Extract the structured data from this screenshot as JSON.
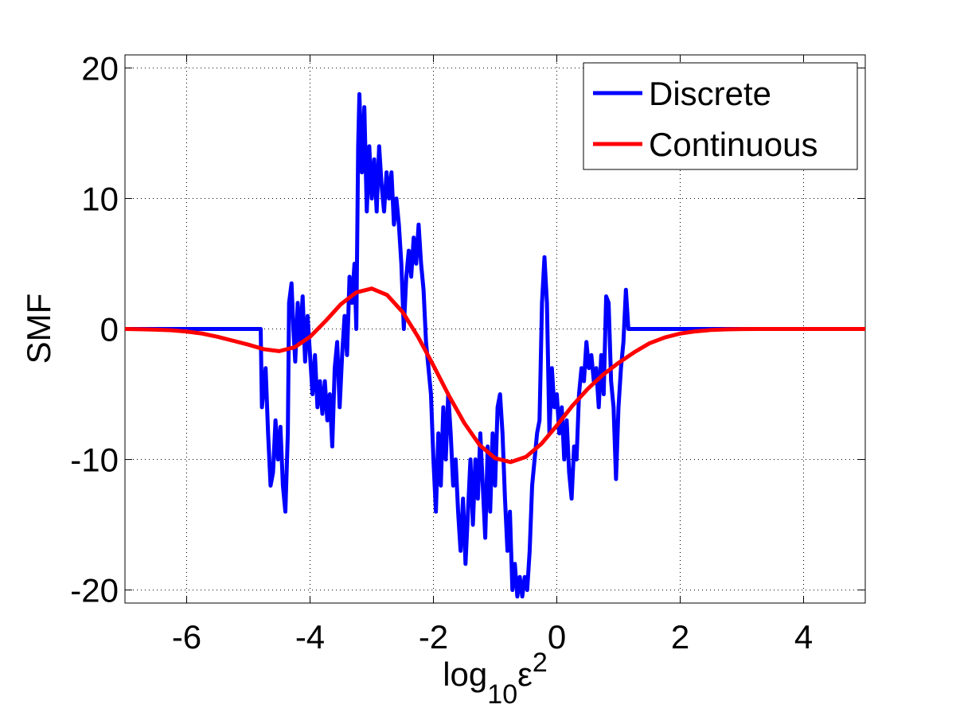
{
  "chart_data": {
    "type": "line",
    "xlabel": {
      "base": "log",
      "sub": "10",
      "main": "ε",
      "sup": "2"
    },
    "ylabel": "SMF",
    "xlim": [
      -7,
      5
    ],
    "ylim": [
      -21,
      21
    ],
    "xticks": [
      -6,
      -4,
      -2,
      0,
      2,
      4
    ],
    "yticks": [
      -20,
      -10,
      0,
      10,
      20
    ],
    "grid": true,
    "legend": "upper right",
    "series": [
      {
        "name": "Discrete",
        "color": "#0000ff",
        "x": [
          -7,
          -4.8,
          -4.78,
          -4.72,
          -4.68,
          -4.64,
          -4.6,
          -4.56,
          -4.52,
          -4.48,
          -4.44,
          -4.4,
          -4.36,
          -4.34,
          -4.3,
          -4.27,
          -4.24,
          -4.2,
          -4.16,
          -4.12,
          -4.08,
          -4.04,
          -4.0,
          -3.96,
          -3.92,
          -3.88,
          -3.84,
          -3.8,
          -3.76,
          -3.72,
          -3.68,
          -3.64,
          -3.6,
          -3.56,
          -3.52,
          -3.48,
          -3.44,
          -3.4,
          -3.36,
          -3.32,
          -3.28,
          -3.25,
          -3.22,
          -3.2,
          -3.16,
          -3.12,
          -3.08,
          -3.04,
          -3.0,
          -2.96,
          -2.92,
          -2.88,
          -2.84,
          -2.8,
          -2.76,
          -2.72,
          -2.68,
          -2.64,
          -2.6,
          -2.56,
          -2.52,
          -2.48,
          -2.44,
          -2.4,
          -2.36,
          -2.32,
          -2.28,
          -2.24,
          -2.2,
          -2.16,
          -2.12,
          -2.08,
          -2.04,
          -2.0,
          -1.96,
          -1.92,
          -1.88,
          -1.84,
          -1.8,
          -1.76,
          -1.72,
          -1.68,
          -1.64,
          -1.6,
          -1.56,
          -1.52,
          -1.48,
          -1.44,
          -1.4,
          -1.36,
          -1.32,
          -1.28,
          -1.24,
          -1.2,
          -1.16,
          -1.12,
          -1.08,
          -1.04,
          -1.0,
          -0.96,
          -0.92,
          -0.88,
          -0.84,
          -0.8,
          -0.76,
          -0.72,
          -0.68,
          -0.64,
          -0.6,
          -0.56,
          -0.52,
          -0.48,
          -0.44,
          -0.4,
          -0.36,
          -0.32,
          -0.28,
          -0.24,
          -0.2,
          -0.16,
          -0.12,
          -0.08,
          -0.04,
          0.0,
          0.04,
          0.08,
          0.12,
          0.16,
          0.2,
          0.24,
          0.28,
          0.32,
          0.36,
          0.4,
          0.44,
          0.48,
          0.52,
          0.56,
          0.6,
          0.64,
          0.68,
          0.72,
          0.76,
          0.8,
          0.84,
          0.88,
          0.92,
          0.96,
          1.0,
          1.04,
          1.08,
          1.12,
          1.16,
          1.2,
          5
        ],
        "values": [
          0,
          0,
          -6,
          -3,
          -8,
          -12,
          -11,
          -7,
          -10,
          -7.5,
          -12,
          -14,
          -8,
          2,
          3.5,
          0,
          -2.5,
          2,
          -1,
          2.5,
          -2.5,
          1,
          -2,
          -5,
          -2,
          -6,
          -4,
          -6.5,
          -4,
          -7,
          -5,
          -9,
          -3,
          -1,
          -6,
          -2,
          1,
          -2,
          4,
          2,
          5,
          0,
          14,
          18,
          12,
          17,
          9,
          14,
          10,
          13,
          9,
          14,
          11,
          9,
          12,
          10,
          12,
          8,
          10,
          8,
          5,
          0,
          4,
          6,
          4,
          7,
          5,
          8,
          5,
          3,
          -1,
          -3,
          -5,
          -10,
          -14,
          -8,
          -12,
          -6,
          -10,
          -5,
          -8,
          -12,
          -10,
          -14,
          -17,
          -13,
          -18,
          -14,
          -10,
          -15,
          -10,
          -13,
          -8,
          -12,
          -16,
          -9,
          -14,
          -8,
          -12,
          -6,
          -5,
          -8,
          -13,
          -17,
          -14,
          -20,
          -18,
          -20.5,
          -19,
          -20.5,
          -19,
          -20,
          -17,
          -12,
          -10,
          -8,
          -7,
          2,
          5.5,
          2,
          -8,
          -3,
          -6,
          -5,
          -8,
          -6,
          -10,
          -7,
          -11,
          -13,
          -9,
          -10,
          -5,
          -3,
          -4,
          -1,
          -3,
          -2,
          -4,
          -3,
          -6,
          -2,
          -5,
          2.5,
          2,
          -4,
          -6,
          -11.5,
          -6,
          -3,
          -1,
          3,
          0,
          0,
          0
        ]
      },
      {
        "name": "Continuous",
        "color": "#ff0000",
        "x": [
          -7,
          -6.75,
          -6.5,
          -6.25,
          -6,
          -5.75,
          -5.5,
          -5.25,
          -5,
          -4.75,
          -4.5,
          -4.25,
          -4,
          -3.75,
          -3.5,
          -3.25,
          -3,
          -2.75,
          -2.5,
          -2.25,
          -2,
          -1.75,
          -1.5,
          -1.25,
          -1,
          -0.75,
          -0.5,
          -0.25,
          0,
          0.25,
          0.5,
          0.75,
          1,
          1.25,
          1.5,
          1.75,
          2,
          2.25,
          2.5,
          2.75,
          3,
          3.25,
          3.5,
          4,
          4.5,
          5
        ],
        "values": [
          0,
          -0.02,
          -0.05,
          -0.1,
          -0.2,
          -0.35,
          -0.6,
          -0.9,
          -1.2,
          -1.55,
          -1.7,
          -1.4,
          -0.6,
          0.6,
          1.9,
          2.8,
          3.1,
          2.6,
          1.3,
          -0.6,
          -2.8,
          -5.1,
          -7.2,
          -8.9,
          -9.9,
          -10.2,
          -9.8,
          -8.8,
          -7.4,
          -5.9,
          -4.6,
          -3.5,
          -2.6,
          -1.8,
          -1.1,
          -0.65,
          -0.35,
          -0.18,
          -0.08,
          -0.03,
          -0.01,
          0,
          0,
          0,
          0,
          0
        ]
      }
    ]
  }
}
